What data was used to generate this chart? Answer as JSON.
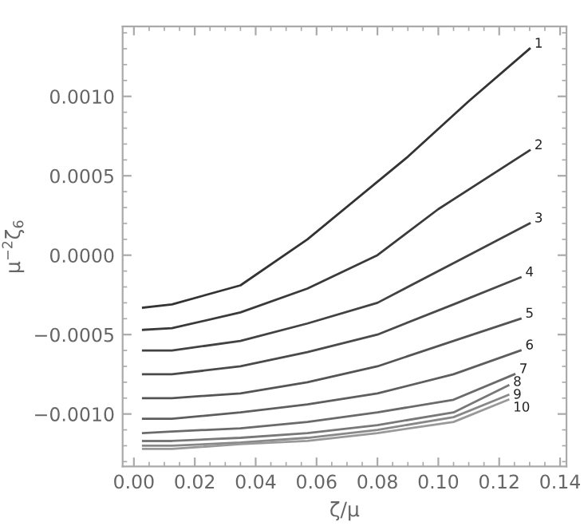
{
  "chart_data": {
    "type": "line",
    "xlabel": "ζ/μ",
    "ylabel": "μ$^{−2}$ζ$_{6}$",
    "xlim": [
      -0.0037,
      0.1421
    ],
    "ylim": [
      -0.00133,
      0.00144
    ],
    "xticks": [
      {
        "value": 0,
        "label": "0.00"
      },
      {
        "value": 0.02,
        "label": "0.02"
      },
      {
        "value": 0.04,
        "label": "0.04"
      },
      {
        "value": 0.06,
        "label": "0.06"
      },
      {
        "value": 0.08,
        "label": "0.08"
      },
      {
        "value": 0.1,
        "label": "0.10"
      },
      {
        "value": 0.12,
        "label": "0.12"
      },
      {
        "value": 0.14,
        "label": "0.14"
      }
    ],
    "yticks": [
      {
        "value": -0.001,
        "label": "−0.0010"
      },
      {
        "value": -0.0005,
        "label": "−0.0005"
      },
      {
        "value": 0,
        "label": "0.0000"
      },
      {
        "value": 0.0005,
        "label": "0.0005"
      },
      {
        "value": 0.001,
        "label": "0.0010"
      }
    ],
    "grid": false,
    "legend": false,
    "marker": "none",
    "line_style": "solid",
    "series": [
      {
        "name": "1",
        "color": "#333333",
        "x": [
          0.003,
          0.0125,
          0.035,
          0.057,
          0.09,
          0.11,
          0.13
        ],
        "values": [
          -0.00033,
          -0.00031,
          -0.00019,
          0.0001,
          0.00062,
          0.00097,
          0.0013
        ]
      },
      {
        "name": "2",
        "color": "#3a3a3a",
        "x": [
          0.003,
          0.0125,
          0.035,
          0.057,
          0.08,
          0.1,
          0.13
        ],
        "values": [
          -0.00047,
          -0.00046,
          -0.00036,
          -0.00021,
          0.0,
          0.00029,
          0.00066
        ]
      },
      {
        "name": "3",
        "color": "#424242",
        "x": [
          0.003,
          0.0125,
          0.035,
          0.057,
          0.08,
          0.11,
          0.13
        ],
        "values": [
          -0.0006,
          -0.0006,
          -0.00054,
          -0.00043,
          -0.0003,
          0.0,
          0.0002
        ]
      },
      {
        "name": "4",
        "color": "#4a4a4a",
        "x": [
          0.003,
          0.0125,
          0.035,
          0.057,
          0.08,
          0.105,
          0.127
        ],
        "values": [
          -0.00075,
          -0.00075,
          -0.0007,
          -0.00061,
          -0.0005,
          -0.00031,
          -0.00014
        ]
      },
      {
        "name": "5",
        "color": "#545454",
        "x": [
          0.003,
          0.0125,
          0.035,
          0.057,
          0.08,
          0.105,
          0.127
        ],
        "values": [
          -0.0009,
          -0.0009,
          -0.00087,
          -0.0008,
          -0.0007,
          -0.00054,
          -0.0004
        ]
      },
      {
        "name": "6",
        "color": "#5e5e5e",
        "x": [
          0.003,
          0.0125,
          0.035,
          0.057,
          0.08,
          0.105,
          0.127
        ],
        "values": [
          -0.00103,
          -0.00103,
          -0.00099,
          -0.00094,
          -0.00087,
          -0.00075,
          -0.0006
        ]
      },
      {
        "name": "7",
        "color": "#6a6a6a",
        "x": [
          0.003,
          0.0125,
          0.035,
          0.057,
          0.08,
          0.105,
          0.125
        ],
        "values": [
          -0.00112,
          -0.00111,
          -0.00109,
          -0.00105,
          -0.00099,
          -0.00091,
          -0.00075
        ]
      },
      {
        "name": "8",
        "color": "#787878",
        "x": [
          0.003,
          0.0125,
          0.035,
          0.057,
          0.08,
          0.105,
          0.123
        ],
        "values": [
          -0.00117,
          -0.00117,
          -0.00115,
          -0.00112,
          -0.00107,
          -0.00099,
          -0.00082
        ]
      },
      {
        "name": "9",
        "color": "#888888",
        "x": [
          0.003,
          0.0125,
          0.035,
          0.057,
          0.08,
          0.105,
          0.123
        ],
        "values": [
          -0.0012,
          -0.0012,
          -0.00118,
          -0.00115,
          -0.0011,
          -0.00102,
          -0.00088
        ]
      },
      {
        "name": "10",
        "color": "#999999",
        "x": [
          0.003,
          0.0125,
          0.035,
          0.057,
          0.08,
          0.105,
          0.123
        ],
        "values": [
          -0.00122,
          -0.00122,
          -0.00119,
          -0.00117,
          -0.00112,
          -0.00105,
          -0.00091
        ]
      }
    ]
  }
}
